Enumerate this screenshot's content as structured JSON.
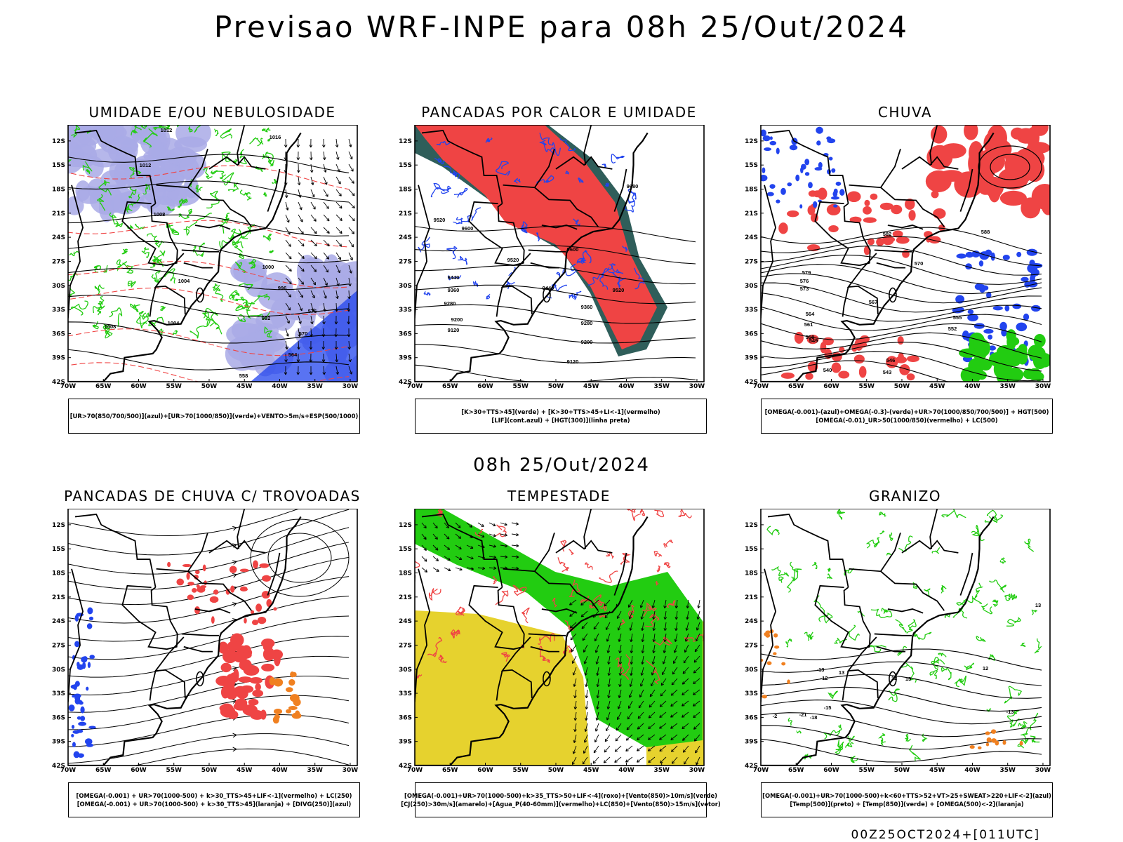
{
  "title": "Previsao WRF-INPE  para 08h 25/Out/2024",
  "mid_title": "08h 25/Out/2024",
  "footer": "00Z25OCT2024+[011UTC]",
  "axes": {
    "lat_labels": [
      "12S",
      "15S",
      "18S",
      "21S",
      "24S",
      "27S",
      "30S",
      "33S",
      "36S",
      "39S",
      "42S"
    ],
    "lon_labels": [
      "70W",
      "65W",
      "60W",
      "55W",
      "50W",
      "45W",
      "40W",
      "35W",
      "30W"
    ]
  },
  "colors": {
    "red": "#ef4444",
    "green": "#22cc11",
    "blue": "#2244ee",
    "lavender": "#a9aae6",
    "yellow": "#e6d22e",
    "darkteal": "#2f5e5a",
    "orange": "#f08020"
  },
  "panels": [
    {
      "title": "UMIDADE E/OU NEBULOSIDADE",
      "legend": [
        "[UR>70(850/700/500)](azul)+[UR>70(1000/850)](verde)+VENTO>5m/s+ESP(500/1000)"
      ],
      "contour_labels": [
        "1012",
        "1016",
        "1012",
        "1008",
        "1004",
        "1000",
        "996",
        "992",
        "576",
        "570",
        "564",
        "558",
        "1008",
        "1004"
      ]
    },
    {
      "title": "PANCADAS POR CALOR E UMIDADE",
      "legend": [
        "[K>30+TTS>45](verde) + [K>30+TTS>45+LI<-1](vermelho)",
        "[LIF](cont.azul) + [HGT(300)](linha preta)"
      ],
      "contour_labels": [
        "9680",
        "9520",
        "9600",
        "9520",
        "9440",
        "9360",
        "9280",
        "9200",
        "9120",
        "9440",
        "9360",
        "9280",
        "9200",
        "9120",
        "9520",
        "9600"
      ]
    },
    {
      "title": "CHUVA",
      "legend": [
        "[OMEGA(-0.001)-(azul)+OMEGA(-0.3)-(verde)+UR>70(1000/850/700/500)] + HGT(500)",
        "[OMEGA(-0.01)_UR>50(1000/850)(vermelho) + LC(500)"
      ],
      "contour_labels": [
        "582",
        "579",
        "576",
        "573",
        "570",
        "567",
        "564",
        "561",
        "558",
        "555",
        "552",
        "549",
        "546",
        "543",
        "540",
        "588"
      ]
    },
    {
      "title": "PANCADAS DE CHUVA C/ TROVOADAS",
      "legend": [
        "[OMEGA(-0.001) + UR>70(1000-500) + k>30_TTS>45+LIF<-1](vermelho) + LC(250)",
        "[OMEGA(-0.001) + UR>70(1000-500) + k>30_TTS>45](laranja) + [DIVG(250)](azul)"
      ],
      "contour_labels": []
    },
    {
      "title": "TEMPESTADE",
      "legend": [
        "[OMEGA(-0.001)+UR>70(1000-500)+k>35_TTS>50+LIF<-4](roxo)+[Vento(850)>10m/s](verde)",
        "[CJ(250)>30m/s](amarelo)+[Agua_P(40-60mm)](vermelho)+LC(850)+[Vento(850)>15m/s](vetor)"
      ],
      "contour_labels": []
    },
    {
      "title": "GRANIZO",
      "legend": [
        "[OMEGA(-0.001)+UR>70(1000-500)+k<60+TTS>52+VT>25+SWEAT>220+LIF<-2](azul)",
        "[Temp(500)](preto) + [Temp(850)](verde) + [OMEGA(500)<-2](laranja)"
      ],
      "contour_labels": [
        "-13",
        "-12",
        "-15",
        "-21",
        "-18",
        "-2",
        "13",
        "15",
        "12",
        "12",
        "13",
        "-13"
      ]
    }
  ]
}
